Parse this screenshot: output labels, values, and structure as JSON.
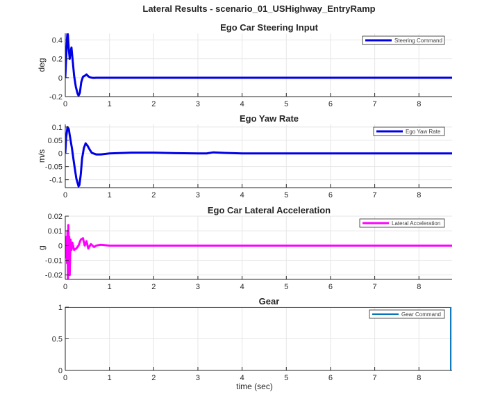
{
  "figure": {
    "suptitle": "Lateral Results - scenario_01_USHighway_EntryRamp"
  },
  "chart_data": [
    {
      "type": "line",
      "title": "Ego Car Steering Input",
      "xlabel": "",
      "ylabel": "deg",
      "xlim": [
        0,
        8.75
      ],
      "ylim": [
        -0.2,
        0.47
      ],
      "xticks": [
        "0",
        "1",
        "2",
        "3",
        "4",
        "5",
        "6",
        "7",
        "8"
      ],
      "yticks": [
        -0.2,
        0,
        0.2,
        0.4
      ],
      "ytick_labels": [
        "-0.2",
        "0",
        "0.2",
        "0.4"
      ],
      "grid": true,
      "legend_position": "top-right",
      "series": [
        {
          "name": "Steering Command",
          "color": "#0000e6",
          "x": [
            0,
            0.02,
            0.04,
            0.05,
            0.06,
            0.08,
            0.1,
            0.12,
            0.14,
            0.16,
            0.2,
            0.24,
            0.28,
            0.3,
            0.33,
            0.36,
            0.4,
            0.44,
            0.48,
            0.52,
            0.56,
            0.6,
            0.65,
            0.7,
            1,
            2,
            3,
            4,
            5,
            6,
            7,
            8,
            8.75
          ],
          "y": [
            0,
            0.2,
            0.42,
            0.48,
            0.45,
            0.3,
            0.2,
            0.28,
            0.32,
            0.22,
            0.02,
            -0.1,
            -0.17,
            -0.19,
            -0.16,
            -0.05,
            0.01,
            0.02,
            0.035,
            0.015,
            0.005,
            0.0,
            -0.002,
            0,
            0,
            0,
            0,
            0,
            0,
            0,
            0,
            0,
            0
          ]
        }
      ]
    },
    {
      "type": "line",
      "title": "Ego Yaw Rate",
      "xlabel": "",
      "ylabel": "m/s",
      "xlim": [
        0,
        8.75
      ],
      "ylim": [
        -0.13,
        0.11
      ],
      "xticks": [
        "0",
        "1",
        "2",
        "3",
        "4",
        "5",
        "6",
        "7",
        "8"
      ],
      "yticks": [
        -0.1,
        -0.05,
        0,
        0.05,
        0.1
      ],
      "ytick_labels": [
        "-0.1",
        "-0.05",
        "0",
        "0.05",
        "0.1"
      ],
      "grid": true,
      "legend_position": "top-right",
      "series": [
        {
          "name": "Ego Yaw Rate",
          "color": "#0000e6",
          "x": [
            0,
            0.02,
            0.05,
            0.08,
            0.1,
            0.15,
            0.2,
            0.25,
            0.3,
            0.32,
            0.35,
            0.38,
            0.42,
            0.46,
            0.5,
            0.55,
            0.6,
            0.7,
            0.8,
            1.0,
            1.5,
            2.0,
            2.5,
            3.0,
            3.2,
            3.35,
            3.6,
            4.0,
            5,
            6,
            7,
            8,
            8.75
          ],
          "y": [
            0,
            0.06,
            0.1,
            0.092,
            0.07,
            0.02,
            -0.04,
            -0.095,
            -0.125,
            -0.12,
            -0.08,
            -0.02,
            0.02,
            0.038,
            0.03,
            0.015,
            0.002,
            -0.004,
            -0.004,
            0.0,
            0.003,
            0.003,
            0.001,
            0.0,
            0.0,
            0.004,
            0.002,
            0.0,
            0,
            0,
            0,
            0,
            0
          ]
        }
      ]
    },
    {
      "type": "line",
      "title": "Ego Car Lateral Acceleration",
      "xlabel": "",
      "ylabel": "g",
      "xlim": [
        0,
        8.75
      ],
      "ylim": [
        -0.023,
        0.02
      ],
      "xticks": [
        "0",
        "1",
        "2",
        "3",
        "4",
        "5",
        "6",
        "7",
        "8"
      ],
      "yticks": [
        -0.02,
        -0.01,
        0,
        0.01,
        0.02
      ],
      "ytick_labels": [
        "-0.02",
        "-0.01",
        "0",
        "0.01",
        "0.02"
      ],
      "grid": true,
      "legend_position": "top-right",
      "series": [
        {
          "name": "Lateral Acceleration",
          "color": "#ff00ff",
          "x": [
            0,
            0.01,
            0.02,
            0.03,
            0.04,
            0.05,
            0.06,
            0.07,
            0.08,
            0.09,
            0.1,
            0.12,
            0.14,
            0.16,
            0.2,
            0.25,
            0.3,
            0.35,
            0.4,
            0.44,
            0.48,
            0.52,
            0.58,
            0.65,
            0.7,
            0.8,
            1.0,
            2,
            3,
            4,
            5,
            6,
            7,
            8,
            8.75
          ],
          "y": [
            0,
            0.002,
            -0.008,
            0.006,
            -0.012,
            0.01,
            -0.023,
            0.014,
            -0.004,
            0.006,
            -0.02,
            0.004,
            -0.003,
            0.002,
            -0.003,
            -0.002,
            0.0,
            0.004,
            0.005,
            0.0,
            0.003,
            -0.002,
            0.001,
            -0.001,
            0.0,
            0.0005,
            0,
            0,
            0,
            0,
            0,
            0,
            0,
            0,
            0
          ]
        }
      ]
    },
    {
      "type": "line",
      "title": "Gear",
      "xlabel": "time (sec)",
      "ylabel": "",
      "xlim": [
        0,
        8.75
      ],
      "ylim": [
        0,
        1
      ],
      "xticks": [
        "0",
        "1",
        "2",
        "3",
        "4",
        "5",
        "6",
        "7",
        "8"
      ],
      "yticks": [
        0,
        0.5,
        1
      ],
      "ytick_labels": [
        "0",
        "0.5",
        "1"
      ],
      "grid": true,
      "legend_position": "top-right",
      "series": [
        {
          "name": "Gear Command",
          "color": "#0072bd",
          "x": [
            0,
            8.72,
            8.72
          ],
          "y": [
            1,
            1,
            0
          ]
        }
      ]
    }
  ]
}
